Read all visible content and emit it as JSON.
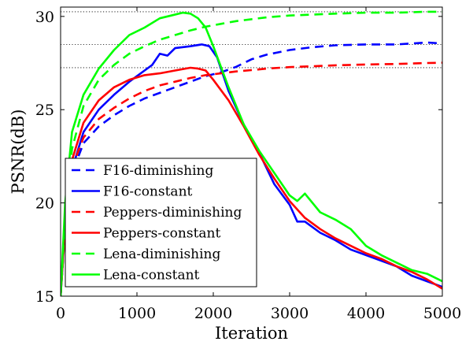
{
  "chart_data": {
    "type": "line",
    "xlabel": "Iteration",
    "ylabel": "PSNR(dB)",
    "xlim": [
      0,
      5000
    ],
    "ylim": [
      15,
      30.5
    ],
    "xticks": [
      0,
      1000,
      2000,
      3000,
      4000,
      5000
    ],
    "yticks": [
      15,
      20,
      25,
      30
    ],
    "reference_lines": [
      30.25,
      28.5,
      27.25
    ],
    "legend_position": "lower-left",
    "grid": false,
    "series": [
      {
        "name": "F16-diminishing",
        "color": "#0000ff",
        "dash": "dashed",
        "x": [
          0,
          60,
          150,
          300,
          500,
          700,
          900,
          1100,
          1300,
          1500,
          1700,
          1900,
          2100,
          2300,
          2500,
          2700,
          3000,
          3300,
          3600,
          4000,
          4400,
          4800,
          5000
        ],
        "y": [
          15,
          18.6,
          21.6,
          23.2,
          24.1,
          24.7,
          25.2,
          25.6,
          25.9,
          26.2,
          26.5,
          26.8,
          27.0,
          27.3,
          27.7,
          27.95,
          28.2,
          28.35,
          28.45,
          28.5,
          28.5,
          28.6,
          28.55
        ]
      },
      {
        "name": "F16-constant",
        "color": "#0000ff",
        "dash": "solid",
        "x": [
          0,
          60,
          150,
          300,
          500,
          700,
          900,
          1100,
          1200,
          1300,
          1400,
          1500,
          1700,
          1850,
          1950,
          2050,
          2200,
          2400,
          2600,
          2800,
          3000,
          3100,
          3200,
          3400,
          3600,
          3800,
          4000,
          4200,
          4400,
          4600,
          4800,
          5000
        ],
        "y": [
          15,
          18.8,
          21.8,
          23.8,
          25.0,
          25.8,
          26.5,
          27.1,
          27.4,
          28.0,
          27.9,
          28.3,
          28.4,
          28.5,
          28.4,
          27.8,
          26.0,
          24.2,
          22.7,
          21.0,
          19.9,
          19.0,
          19.0,
          18.4,
          18.0,
          17.5,
          17.2,
          16.9,
          16.6,
          16.1,
          15.8,
          15.5
        ]
      },
      {
        "name": "Peppers-diminishing",
        "color": "#ff0000",
        "dash": "dashed",
        "x": [
          0,
          60,
          150,
          300,
          500,
          700,
          900,
          1100,
          1300,
          1500,
          1700,
          1900,
          2100,
          2300,
          2500,
          2700,
          3000,
          3300,
          3600,
          4000,
          4400,
          4800,
          5000
        ],
        "y": [
          15,
          18.6,
          21.9,
          23.5,
          24.5,
          25.1,
          25.6,
          26.0,
          26.3,
          26.5,
          26.7,
          26.85,
          26.95,
          27.05,
          27.12,
          27.2,
          27.28,
          27.33,
          27.38,
          27.42,
          27.45,
          27.5,
          27.52
        ]
      },
      {
        "name": "Peppers-constant",
        "color": "#ff0000",
        "dash": "solid",
        "x": [
          0,
          60,
          150,
          300,
          500,
          700,
          900,
          1100,
          1300,
          1500,
          1700,
          1800,
          1900,
          2000,
          2200,
          2400,
          2600,
          2800,
          3000,
          3200,
          3400,
          3600,
          3800,
          4000,
          4200,
          4400,
          4600,
          4800,
          5000
        ],
        "y": [
          15,
          19.0,
          22.3,
          24.3,
          25.5,
          26.2,
          26.6,
          26.85,
          26.95,
          27.1,
          27.25,
          27.2,
          27.1,
          26.6,
          25.5,
          24.1,
          22.6,
          21.3,
          20.1,
          19.2,
          18.6,
          18.1,
          17.7,
          17.3,
          17.0,
          16.6,
          16.3,
          15.9,
          15.4
        ]
      },
      {
        "name": "Lena-diminishing",
        "color": "#00ff00",
        "dash": "dashed",
        "x": [
          0,
          60,
          150,
          300,
          500,
          700,
          900,
          1100,
          1300,
          1500,
          1700,
          1900,
          2100,
          2300,
          2500,
          2700,
          3000,
          3300,
          3600,
          4000,
          4400,
          4800,
          5000
        ],
        "y": [
          15,
          19.3,
          22.9,
          25.2,
          26.6,
          27.4,
          28.0,
          28.4,
          28.75,
          29.0,
          29.25,
          29.45,
          29.6,
          29.75,
          29.85,
          29.95,
          30.05,
          30.1,
          30.15,
          30.2,
          30.2,
          30.25,
          30.25
        ]
      },
      {
        "name": "Lena-constant",
        "color": "#00ff00",
        "dash": "solid",
        "x": [
          0,
          60,
          150,
          300,
          500,
          700,
          900,
          1100,
          1300,
          1450,
          1600,
          1700,
          1800,
          1900,
          2000,
          2100,
          2200,
          2400,
          2600,
          2800,
          3000,
          3100,
          3200,
          3400,
          3600,
          3800,
          4000,
          4200,
          4400,
          4600,
          4800,
          5000
        ],
        "y": [
          15,
          20.0,
          23.8,
          25.8,
          27.2,
          28.2,
          29.0,
          29.4,
          29.9,
          30.05,
          30.2,
          30.15,
          29.9,
          29.4,
          28.4,
          27.3,
          26.2,
          24.2,
          22.8,
          21.6,
          20.4,
          20.1,
          20.5,
          19.5,
          19.1,
          18.6,
          17.7,
          17.2,
          16.8,
          16.4,
          16.2,
          15.8
        ]
      }
    ]
  }
}
